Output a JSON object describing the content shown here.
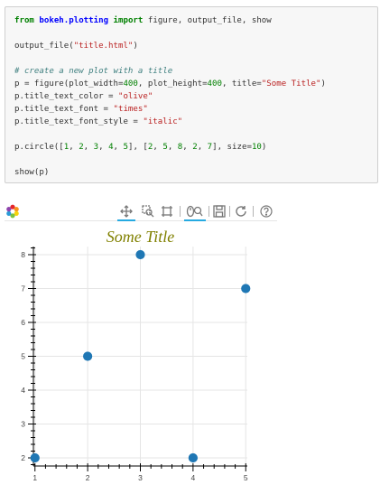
{
  "code": {
    "line1": {
      "kw1": "from",
      "module": "bokeh.plotting",
      "kw2": "import",
      "names": " figure, output_file, show"
    },
    "line3": {
      "fn": "output_file(",
      "arg": "\"title.html\"",
      "close": ")"
    },
    "line5": {
      "comment": "# create a new plot with a title"
    },
    "line6": {
      "pre": "p = figure(plot_width=",
      "w": "400",
      "mid1": ", plot_height=",
      "h": "400",
      "mid2": ", title=",
      "title": "\"Some Title\"",
      "close": ")"
    },
    "line7": {
      "pre": "p.title_text_color = ",
      "val": "\"olive\""
    },
    "line8": {
      "pre": "p.title_text_font = ",
      "val": "\"times\""
    },
    "line9": {
      "pre": "p.title_text_font_style = ",
      "val": "\"italic\""
    },
    "line11": {
      "pre": "p.circle([",
      "x1": "1",
      "c1": ", ",
      "x2": "2",
      "c2": ", ",
      "x3": "3",
      "c3": ", ",
      "x4": "4",
      "c4": ", ",
      "x5": "5",
      "m": "], [",
      "y1": "2",
      "d1": ", ",
      "y2": "5",
      "d2": ", ",
      "y3": "8",
      "d3": ", ",
      "y4": "2",
      "d4": ", ",
      "y5": "7",
      "m2": "], size=",
      "size": "10",
      "close": ")"
    },
    "line13": {
      "text": "show(p)"
    }
  },
  "toolbar": {
    "tools": [
      "pan-icon",
      "box-zoom-icon",
      "resize-icon",
      "wheel-zoom-icon",
      "save-icon",
      "reset-icon",
      "help-icon"
    ],
    "active_color": "#26aae1"
  },
  "colors": {
    "title": "#808000",
    "marker": "#1f77b4",
    "grid": "#e5e5e5",
    "axis": "#000000"
  },
  "chart_data": {
    "type": "scatter",
    "title": "Some Title",
    "x": [
      1,
      2,
      3,
      4,
      5
    ],
    "y": [
      2,
      5,
      8,
      2,
      7
    ],
    "xlim": [
      0.97,
      5.03
    ],
    "ylim": [
      1.76,
      8.24
    ],
    "xticks": [
      "1",
      "2",
      "3",
      "4",
      "5"
    ],
    "yticks": [
      "2",
      "3",
      "4",
      "5",
      "6",
      "7",
      "8"
    ],
    "grid": true,
    "xlabel": "",
    "ylabel": ""
  }
}
